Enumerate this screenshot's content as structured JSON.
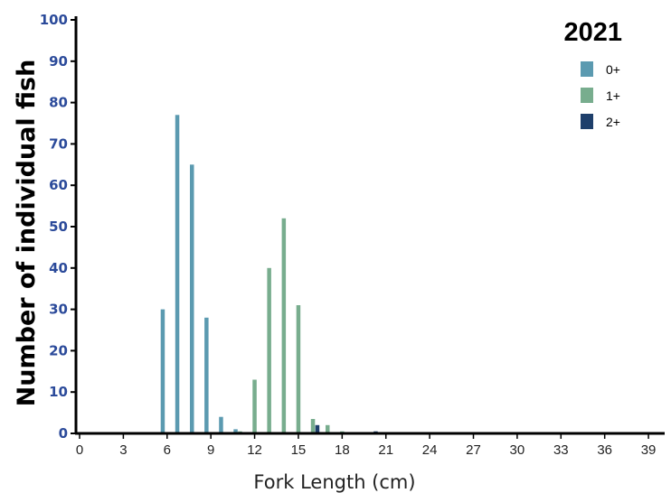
{
  "chart_data": {
    "type": "bar",
    "title": "2021",
    "xlabel": "Fork Length (cm)",
    "ylabel": "Number of individual fish",
    "xlim": [
      0,
      39
    ],
    "ylim": [
      0,
      100
    ],
    "xticks": [
      "0",
      "3",
      "6",
      "9",
      "12",
      "15",
      "18",
      "21",
      "24",
      "27",
      "30",
      "33",
      "36",
      "39"
    ],
    "yticks": [
      "0",
      "10",
      "20",
      "30",
      "40",
      "50",
      "60",
      "70",
      "80",
      "90",
      "100"
    ],
    "grid": false,
    "legend_position": "top-right",
    "series": [
      {
        "name": "0+",
        "color": "#5b9ab0",
        "points": [
          {
            "x": 5.7,
            "y": 30
          },
          {
            "x": 6.7,
            "y": 77
          },
          {
            "x": 7.7,
            "y": 65
          },
          {
            "x": 8.7,
            "y": 28
          },
          {
            "x": 9.7,
            "y": 4
          },
          {
            "x": 10.7,
            "y": 1
          }
        ]
      },
      {
        "name": "1+",
        "color": "#78ad8e",
        "points": [
          {
            "x": 11.0,
            "y": 0.5
          },
          {
            "x": 12.0,
            "y": 13
          },
          {
            "x": 13.0,
            "y": 40
          },
          {
            "x": 14.0,
            "y": 52
          },
          {
            "x": 15.0,
            "y": 31
          },
          {
            "x": 16.0,
            "y": 3.5
          },
          {
            "x": 17.0,
            "y": 2
          },
          {
            "x": 18.0,
            "y": 0.5
          }
        ]
      },
      {
        "name": "2+",
        "color": "#1e3f6b",
        "points": [
          {
            "x": 16.3,
            "y": 2
          },
          {
            "x": 20.3,
            "y": 0.5
          }
        ]
      }
    ]
  }
}
